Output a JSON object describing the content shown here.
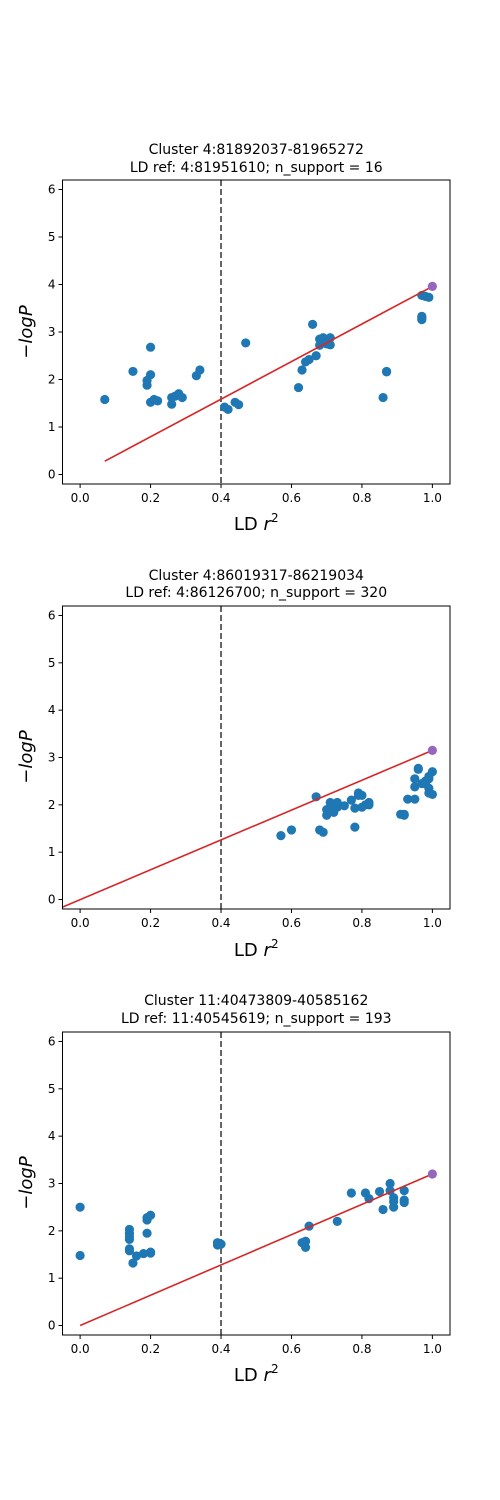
{
  "chart_data": [
    {
      "type": "scatter",
      "title": "Cluster 4:81892037-81965272",
      "subtitle": "LD ref: 4:81951610; n_support = 16",
      "xlabel": "LD",
      "xlabel_sup": "2",
      "xlabel_var": "r",
      "ylabel": "−logP",
      "xlim": [
        -0.05,
        1.05
      ],
      "ylim": [
        -0.2,
        6.2
      ],
      "xticks": [
        "0.0",
        "0.2",
        "0.4",
        "0.6",
        "0.8",
        "1.0"
      ],
      "yticks": [
        "0",
        "1",
        "2",
        "3",
        "4",
        "5",
        "6"
      ],
      "threshold_line_x": 0.4,
      "fit_line": [
        [
          0.07,
          0.28
        ],
        [
          1.0,
          3.96
        ]
      ],
      "lead_point": [
        1.0,
        3.96
      ],
      "point_color": "#1f77b4",
      "lead_color": "#9467bd",
      "fit_color": "#d62728",
      "threshold_color": "#555555",
      "points": [
        [
          0.07,
          1.58
        ],
        [
          0.15,
          2.17
        ],
        [
          0.19,
          1.98
        ],
        [
          0.19,
          1.88
        ],
        [
          0.2,
          2.68
        ],
        [
          0.2,
          2.1
        ],
        [
          0.2,
          1.52
        ],
        [
          0.21,
          1.58
        ],
        [
          0.22,
          1.55
        ],
        [
          0.26,
          1.62
        ],
        [
          0.26,
          1.48
        ],
        [
          0.27,
          1.65
        ],
        [
          0.28,
          1.7
        ],
        [
          0.29,
          1.62
        ],
        [
          0.33,
          2.08
        ],
        [
          0.34,
          2.2
        ],
        [
          0.41,
          1.42
        ],
        [
          0.42,
          1.37
        ],
        [
          0.44,
          1.52
        ],
        [
          0.45,
          1.47
        ],
        [
          0.47,
          2.77
        ],
        [
          0.62,
          1.83
        ],
        [
          0.63,
          2.2
        ],
        [
          0.64,
          2.37
        ],
        [
          0.65,
          2.42
        ],
        [
          0.66,
          3.16
        ],
        [
          0.67,
          2.5
        ],
        [
          0.68,
          2.72
        ],
        [
          0.68,
          2.85
        ],
        [
          0.69,
          2.88
        ],
        [
          0.7,
          2.75
        ],
        [
          0.71,
          2.88
        ],
        [
          0.71,
          2.73
        ],
        [
          0.86,
          1.62
        ],
        [
          0.87,
          2.17
        ],
        [
          0.87,
          2.16
        ],
        [
          0.97,
          3.33
        ],
        [
          0.97,
          3.3
        ],
        [
          0.97,
          3.26
        ],
        [
          0.97,
          3.77
        ],
        [
          0.98,
          3.75
        ],
        [
          0.99,
          3.73
        ]
      ]
    },
    {
      "type": "scatter",
      "title": "Cluster 4:86019317-86219034",
      "subtitle": "LD ref: 4:86126700; n_support = 320",
      "xlabel": "LD",
      "xlabel_sup": "2",
      "xlabel_var": "r",
      "ylabel": "−logP",
      "xlim": [
        -0.05,
        1.05
      ],
      "ylim": [
        -0.2,
        6.2
      ],
      "xticks": [
        "0.0",
        "0.2",
        "0.4",
        "0.6",
        "0.8",
        "1.0"
      ],
      "yticks": [
        "0",
        "1",
        "2",
        "3",
        "4",
        "5",
        "6"
      ],
      "threshold_line_x": 0.4,
      "fit_line": [
        [
          -0.05,
          -0.16
        ],
        [
          0.8,
          2.52
        ]
      ],
      "fit_line_2": [
        [
          0.8,
          2.52
        ],
        [
          1.0,
          3.15
        ]
      ],
      "lead_point": [
        1.0,
        3.15
      ],
      "point_color": "#1f77b4",
      "lead_color": "#9467bd",
      "fit_color": "#d62728",
      "threshold_color": "#555555",
      "points": [
        [
          0.57,
          1.35
        ],
        [
          0.6,
          1.47
        ],
        [
          0.67,
          2.17
        ],
        [
          0.68,
          1.47
        ],
        [
          0.69,
          1.42
        ],
        [
          0.7,
          1.78
        ],
        [
          0.7,
          1.9
        ],
        [
          0.71,
          2.05
        ],
        [
          0.71,
          1.88
        ],
        [
          0.72,
          2.0
        ],
        [
          0.72,
          1.84
        ],
        [
          0.73,
          1.95
        ],
        [
          0.73,
          2.05
        ],
        [
          0.75,
          1.98
        ],
        [
          0.77,
          2.1
        ],
        [
          0.78,
          1.53
        ],
        [
          0.78,
          1.93
        ],
        [
          0.79,
          2.25
        ],
        [
          0.79,
          2.2
        ],
        [
          0.8,
          2.2
        ],
        [
          0.8,
          1.95
        ],
        [
          0.81,
          2.0
        ],
        [
          0.82,
          2.05
        ],
        [
          0.82,
          2.0
        ],
        [
          0.91,
          1.8
        ],
        [
          0.92,
          1.78
        ],
        [
          0.92,
          1.8
        ],
        [
          0.93,
          2.12
        ],
        [
          0.95,
          2.12
        ],
        [
          0.95,
          2.55
        ],
        [
          0.95,
          2.38
        ],
        [
          0.96,
          2.77
        ],
        [
          0.96,
          2.75
        ],
        [
          0.97,
          2.45
        ],
        [
          0.98,
          2.5
        ],
        [
          0.98,
          2.45
        ],
        [
          0.99,
          2.55
        ],
        [
          0.99,
          2.35
        ],
        [
          0.99,
          2.6
        ],
        [
          0.99,
          2.25
        ],
        [
          1.0,
          2.7
        ],
        [
          1.0,
          2.22
        ]
      ]
    },
    {
      "type": "scatter",
      "title": "Cluster 11:40473809-40585162",
      "subtitle": "LD ref: 11:40545619; n_support = 193",
      "xlabel": "LD",
      "xlabel_sup": "2",
      "xlabel_var": "r",
      "ylabel": "−logP",
      "xlim": [
        -0.05,
        1.05
      ],
      "ylim": [
        -0.2,
        6.2
      ],
      "xticks": [
        "0.0",
        "0.2",
        "0.4",
        "0.6",
        "0.8",
        "1.0"
      ],
      "yticks": [
        "0",
        "1",
        "2",
        "3",
        "4",
        "5",
        "6"
      ],
      "threshold_line_x": 0.4,
      "fit_line": [
        [
          0.0,
          0.0
        ],
        [
          1.0,
          3.2
        ]
      ],
      "lead_point": [
        1.0,
        3.2
      ],
      "point_color": "#1f77b4",
      "lead_color": "#9467bd",
      "fit_color": "#d62728",
      "threshold_color": "#555555",
      "points": [
        [
          0.0,
          2.5
        ],
        [
          0.0,
          1.48
        ],
        [
          0.14,
          2.03
        ],
        [
          0.14,
          1.95
        ],
        [
          0.14,
          1.88
        ],
        [
          0.14,
          1.82
        ],
        [
          0.14,
          1.62
        ],
        [
          0.14,
          1.58
        ],
        [
          0.15,
          1.32
        ],
        [
          0.16,
          1.47
        ],
        [
          0.18,
          1.52
        ],
        [
          0.19,
          2.23
        ],
        [
          0.19,
          2.28
        ],
        [
          0.19,
          1.95
        ],
        [
          0.2,
          2.33
        ],
        [
          0.2,
          1.55
        ],
        [
          0.2,
          1.53
        ],
        [
          0.39,
          1.7
        ],
        [
          0.39,
          1.75
        ],
        [
          0.4,
          1.72
        ],
        [
          0.63,
          1.75
        ],
        [
          0.64,
          1.78
        ],
        [
          0.64,
          1.65
        ],
        [
          0.65,
          2.1
        ],
        [
          0.73,
          2.2
        ],
        [
          0.77,
          2.8
        ],
        [
          0.81,
          2.8
        ],
        [
          0.82,
          2.68
        ],
        [
          0.85,
          2.83
        ],
        [
          0.86,
          2.45
        ],
        [
          0.88,
          3.0
        ],
        [
          0.88,
          2.85
        ],
        [
          0.89,
          2.62
        ],
        [
          0.89,
          2.7
        ],
        [
          0.89,
          2.5
        ],
        [
          0.92,
          2.85
        ],
        [
          0.92,
          2.65
        ],
        [
          0.92,
          2.6
        ]
      ]
    }
  ]
}
